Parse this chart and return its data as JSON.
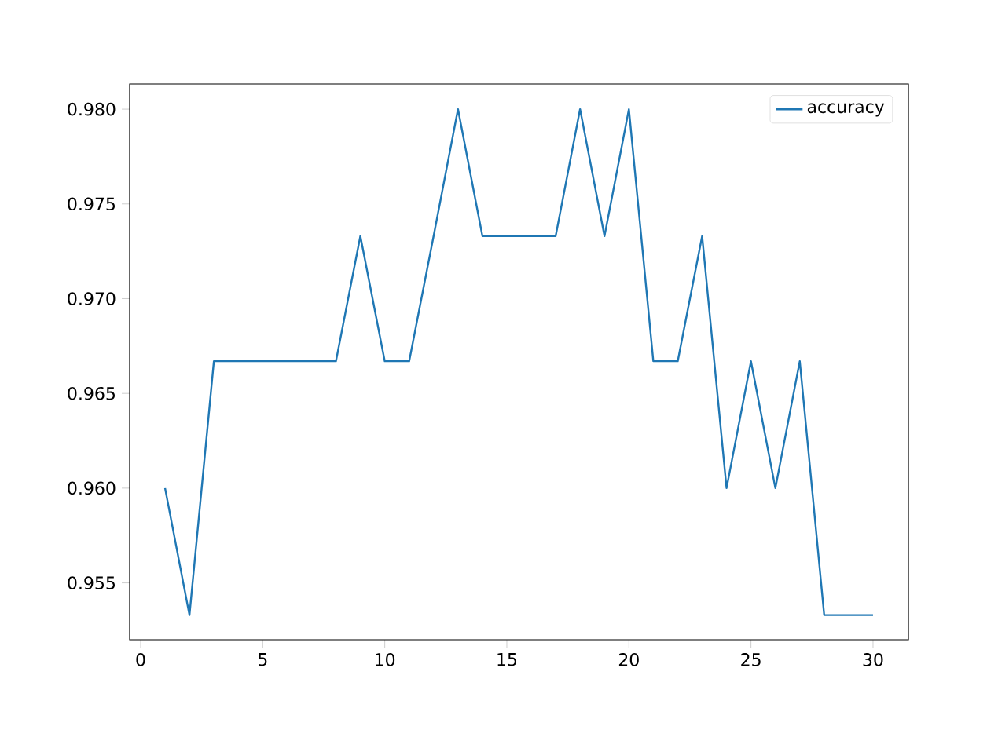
{
  "chart_data": {
    "type": "line",
    "x": [
      1,
      2,
      3,
      4,
      5,
      6,
      7,
      8,
      9,
      10,
      11,
      12,
      13,
      14,
      15,
      16,
      17,
      18,
      19,
      20,
      21,
      22,
      23,
      24,
      25,
      26,
      27,
      28,
      29,
      30
    ],
    "series": [
      {
        "name": "accuracy",
        "color": "#1f77b4",
        "values": [
          0.96,
          0.9533,
          0.9667,
          0.9667,
          0.9667,
          0.9667,
          0.9667,
          0.9667,
          0.9733,
          0.9667,
          0.9667,
          0.9733,
          0.98,
          0.9733,
          0.9733,
          0.9733,
          0.9733,
          0.98,
          0.9733,
          0.98,
          0.9667,
          0.9667,
          0.9733,
          0.96,
          0.9667,
          0.96,
          0.9667,
          0.9533,
          0.9533,
          0.9533
        ]
      }
    ],
    "xlim": [
      -0.45,
      31.45
    ],
    "ylim": [
      0.952,
      0.98133
    ],
    "xticks": [
      0,
      5,
      10,
      15,
      20,
      25,
      30
    ],
    "yticks": [
      0.955,
      {
        "value": 0.96,
        "label": "0.960"
      },
      0.965,
      {
        "value": 0.97,
        "label": "0.970"
      },
      0.975,
      {
        "value": 0.98,
        "label": "0.980"
      }
    ],
    "legend": "top right",
    "grid": false,
    "marker": "none",
    "line_style": "solid"
  }
}
